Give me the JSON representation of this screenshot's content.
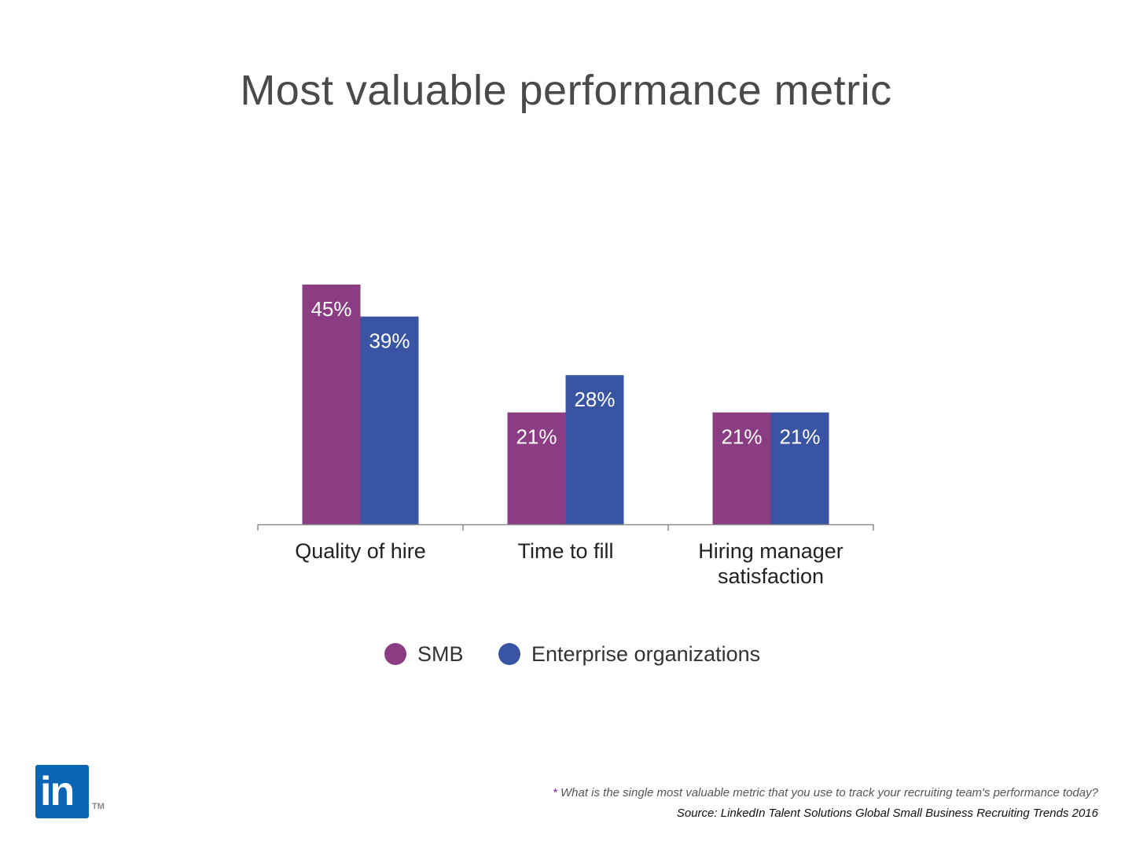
{
  "title": "Most valuable performance metric",
  "chart_data": {
    "type": "bar",
    "categories": [
      "Quality of hire",
      "Time to fill",
      "Hiring manager satisfaction"
    ],
    "series": [
      {
        "name": "SMB",
        "values": [
          45,
          21,
          21
        ],
        "color": "#8a3d82"
      },
      {
        "name": "Enterprise organizations",
        "values": [
          39,
          28,
          21
        ],
        "color": "#3a54a4"
      }
    ],
    "data_labels": [
      [
        "45%",
        "21%",
        "21%"
      ],
      [
        "39%",
        "28%",
        "21%"
      ]
    ],
    "unit": "%",
    "ylim": [
      0,
      45
    ],
    "grid": false,
    "legend": "bottom-center",
    "category_lines": [
      [
        "Quality of hire"
      ],
      [
        "Time to fill"
      ],
      [
        "Hiring manager",
        "satisfaction"
      ]
    ]
  },
  "footnote": {
    "star": "*",
    "text": "What is the single most valuable metric that you use to track your recruiting team's performance today?"
  },
  "source": "Source: LinkedIn Talent Solutions Global Small Business Recruiting Trends 2016",
  "logo": {
    "text": "in",
    "tm": "TM",
    "color": "#0a66b5"
  }
}
